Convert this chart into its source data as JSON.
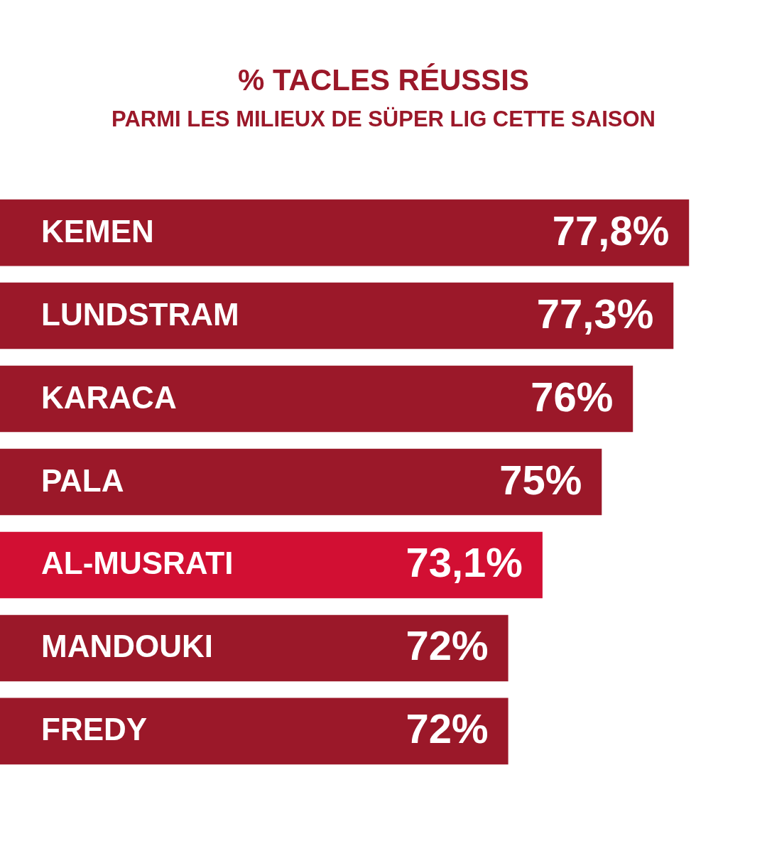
{
  "chart_data": {
    "type": "bar",
    "orientation": "horizontal",
    "title": "% TACLES RÉUSSIS",
    "subtitle": "PARMI LES MILIEUX DE SÜPER LIG CETTE SAISON",
    "categories": [
      "KEMEN",
      "LUNDSTRAM",
      "KARACA",
      "PALA",
      "AL-MUSRATI",
      "MANDOUKI",
      "FREDY"
    ],
    "values": [
      77.8,
      77.3,
      76,
      75,
      73.1,
      72,
      72
    ],
    "value_labels": [
      "77,8%",
      "77,3%",
      "76%",
      "75%",
      "73,1%",
      "72%",
      "72%"
    ],
    "colors": [
      "#9b1829",
      "#9b1829",
      "#9b1829",
      "#9b1829",
      "#d20f33",
      "#9b1829",
      "#9b1829"
    ],
    "xlim": [
      55.7,
      80.3
    ]
  }
}
